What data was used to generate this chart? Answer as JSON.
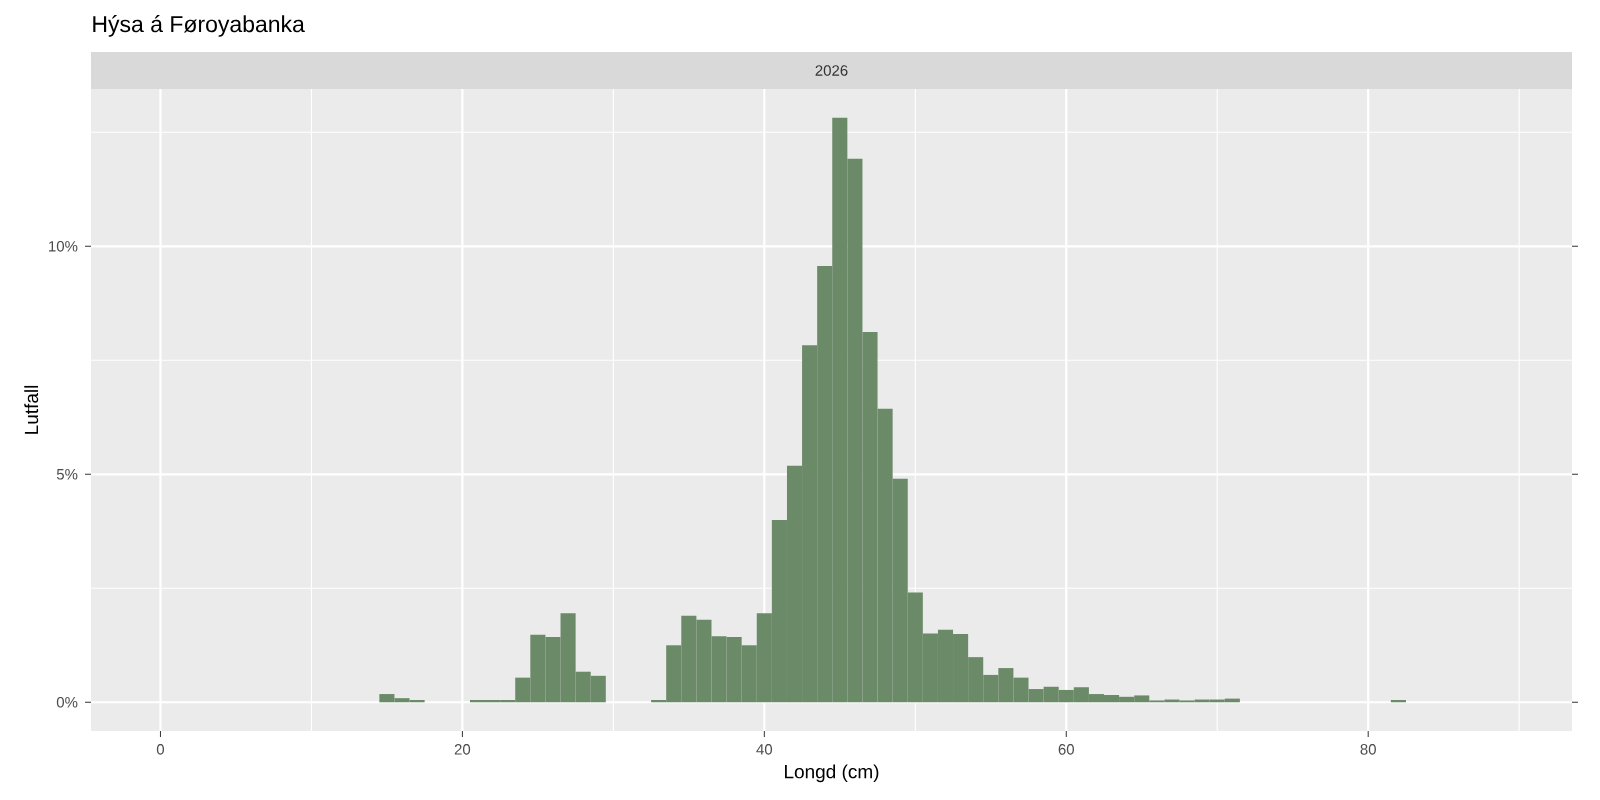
{
  "chart_data": {
    "type": "histogram",
    "title": "Hýsa á Føroyabanka",
    "subtitle": "2026",
    "xlabel": "Longd (cm)",
    "ylabel": "Lutfall",
    "color": "#6a8a68",
    "bins": [
      14.5,
      15.5,
      16.5,
      17.5,
      18.5,
      19.5,
      20.5,
      21.5,
      22.5,
      23.5,
      24.5,
      25.5,
      26.5,
      27.5,
      28.5,
      29.5,
      30.5,
      31.5,
      32.5,
      33.5,
      34.5,
      35.5,
      36.5,
      37.5,
      38.5,
      39.5,
      40.5,
      41.5,
      42.5,
      43.5,
      44.5,
      45.5,
      46.5,
      47.5,
      48.5,
      49.5,
      50.5,
      51.5,
      52.5,
      53.5,
      54.5,
      55.5,
      56.5,
      57.5,
      58.5,
      59.5,
      60.5,
      61.5,
      62.5,
      63.5,
      64.5,
      65.5,
      66.5,
      67.5,
      68.5,
      69.5,
      70.5,
      71.5,
      72.5,
      73.5,
      74.5,
      75.5,
      76.5,
      77.5,
      78.5,
      79.5,
      80.5,
      81.5,
      82.5
    ],
    "values": [
      0.18,
      0.09,
      0.05,
      0,
      0,
      0,
      0.05,
      0.05,
      0.05,
      0.54,
      1.48,
      1.43,
      1.95,
      0.67,
      0.58,
      0,
      0,
      0,
      0.05,
      1.25,
      1.9,
      1.81,
      1.45,
      1.43,
      1.25,
      1.95,
      4.0,
      5.19,
      7.83,
      9.57,
      12.82,
      11.92,
      8.12,
      6.44,
      4.9,
      2.41,
      1.51,
      1.59,
      1.5,
      0.99,
      0.6,
      0.75,
      0.54,
      0.29,
      0.34,
      0.27,
      0.33,
      0.18,
      0.16,
      0.12,
      0.15,
      0.04,
      0.06,
      0.04,
      0.06,
      0.06,
      0.08,
      0,
      0,
      0,
      0,
      0,
      0,
      0,
      0,
      0,
      0,
      0.05
    ],
    "xlim": [
      -4.6,
      93.5
    ],
    "ylim": [
      -0.63,
      13.45
    ],
    "xticks": [
      0,
      20,
      40,
      60,
      80
    ],
    "yticks": [
      {
        "value": 0,
        "label": "0%"
      },
      {
        "value": 5,
        "label": "5%"
      },
      {
        "value": 10,
        "label": "10%"
      }
    ],
    "grid": true
  }
}
